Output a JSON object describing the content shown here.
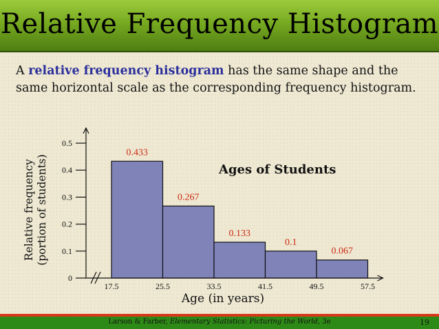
{
  "slide": {
    "title": "Relative Frequency Histogram",
    "intro_pre": "A ",
    "intro_highlight": "relative frequency histogram",
    "intro_post": " has the same shape and the same horizontal scale as the corresponding frequency histogram.",
    "footer_authors": "Larson & Farber, ",
    "footer_book": "Elementary Statistics: Picturing the World",
    "footer_edition": ", 3e",
    "page_number": "19",
    "colors": {
      "title_bar": "#77a921",
      "highlight": "#2b2f9b",
      "bar_fill": "#7f83b8",
      "value_label": "#cc2a14",
      "footer": "#2e8a17"
    }
  },
  "chart_data": {
    "type": "bar",
    "title": "Ages of Students",
    "xlabel": "Age (in years)",
    "ylabel_line1": "Relative frequency",
    "ylabel_line2": "(portion of students)",
    "bin_edges": [
      17.5,
      25.5,
      33.5,
      41.5,
      49.5,
      57.5
    ],
    "x_tick_labels": [
      "17.5",
      "25.5",
      "33.5",
      "41.5",
      "49.5",
      "57.5"
    ],
    "values": [
      0.433,
      0.267,
      0.133,
      0.1,
      0.067
    ],
    "value_labels": [
      "0.433",
      "0.267",
      "0.133",
      "0.1",
      "0.067"
    ],
    "ylim": [
      0,
      0.5
    ],
    "y_ticks": [
      0,
      0.1,
      0.2,
      0.3,
      0.4,
      0.5
    ],
    "y_tick_labels": [
      "0",
      "0.1",
      "0.2",
      "0.3",
      "0.4",
      "0.5"
    ],
    "axis_break": true,
    "grid": false
  }
}
